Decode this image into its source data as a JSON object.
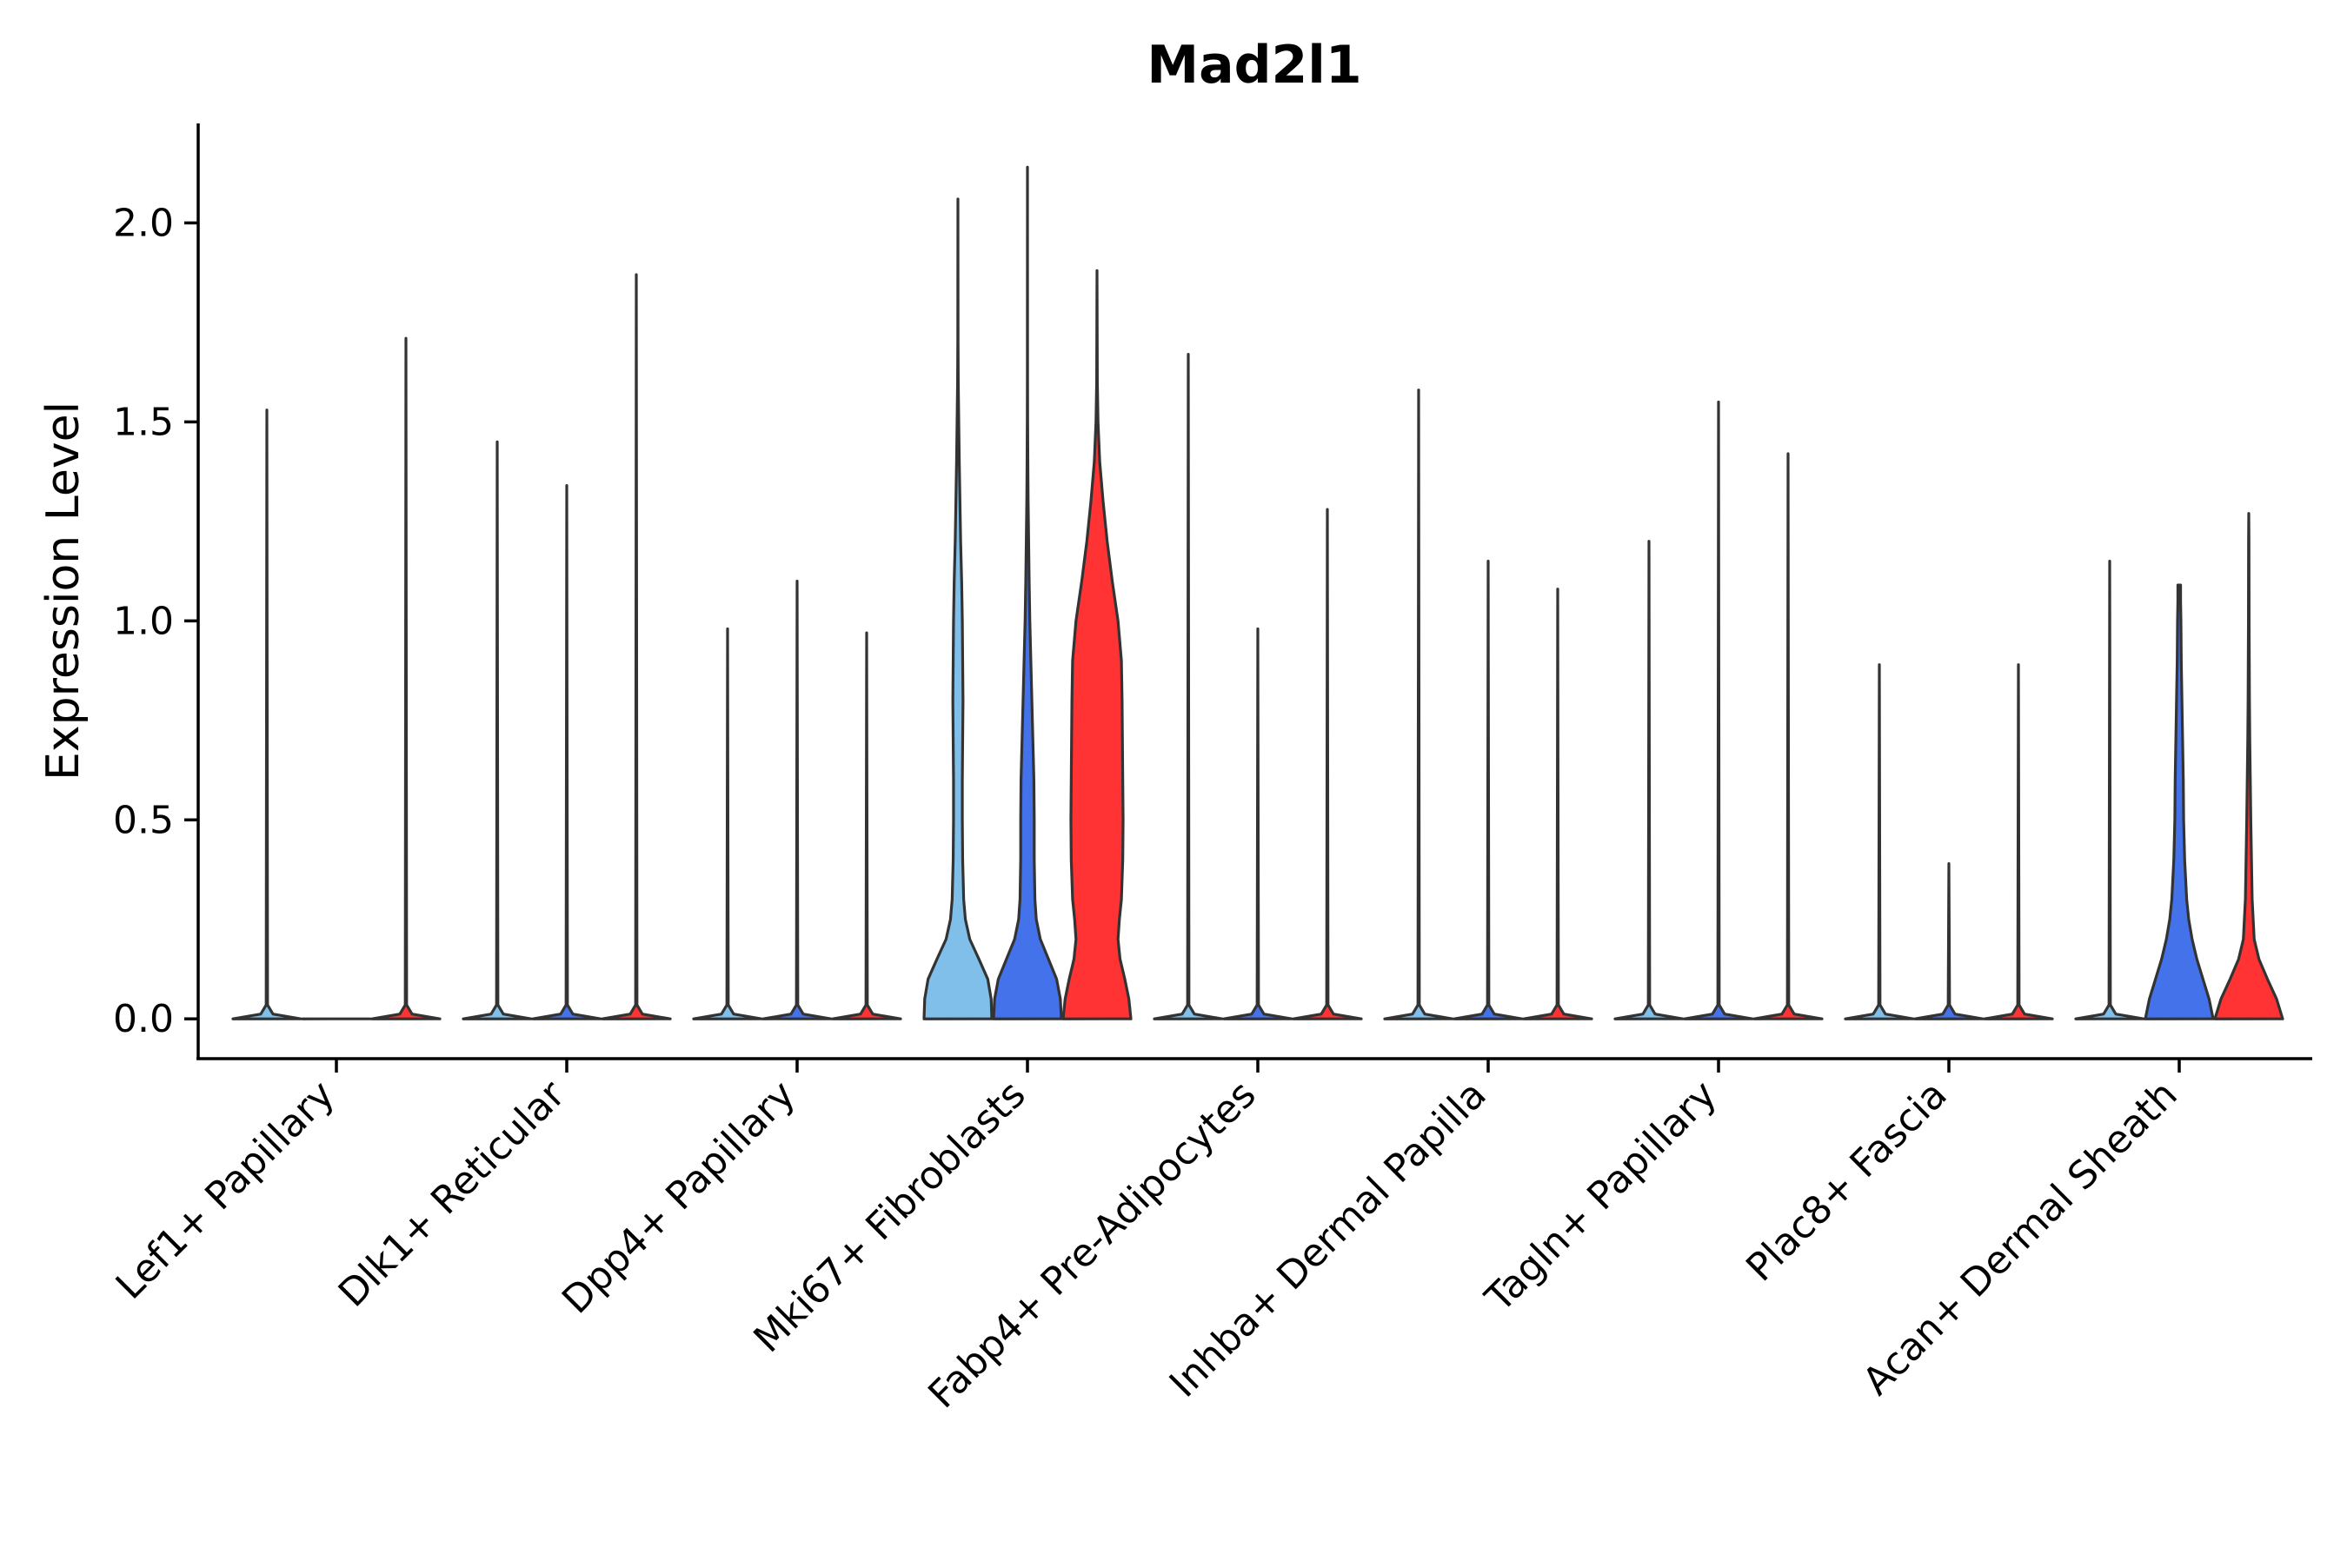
{
  "chart_data": {
    "type": "violin",
    "title": "Mad2l1",
    "xlabel": "",
    "ylabel": "Expression Level",
    "ylim": [
      -0.1,
      2.25
    ],
    "yticks": [
      "0.0",
      "0.5",
      "1.0",
      "1.5",
      "2.0"
    ],
    "legend": "none",
    "categories": [
      "Lef1+ Papillary",
      "Dlk1+ Reticular",
      "Dpp4+ Papillary",
      "Mki67+ Fibroblasts",
      "Fabp4+ Pre-Adipocytes",
      "Inhba+ Dermal Papilla",
      "Tagln+ Papillary",
      "Plac8+ Fascia",
      "Acan+ Dermal Sheath"
    ],
    "groups": [
      "group1",
      "group2",
      "group3"
    ],
    "group_colors": {
      "group1": "#7FBFEA",
      "group2": "#4472EA",
      "group3": "#FF3333"
    },
    "violins": [
      {
        "category": "Lef1+ Papillary",
        "group": "group1",
        "color": "#7FBFEA",
        "max": 1.53,
        "profile": []
      },
      {
        "category": "Lef1+ Papillary",
        "group": "group2",
        "color": "#4472EA",
        "max": 0.0,
        "profile": []
      },
      {
        "category": "Lef1+ Papillary",
        "group": "group3",
        "color": "#FF3333",
        "max": 1.71,
        "profile": []
      },
      {
        "category": "Dlk1+ Reticular",
        "group": "group1",
        "color": "#7FBFEA",
        "max": 1.45,
        "profile": []
      },
      {
        "category": "Dlk1+ Reticular",
        "group": "group2",
        "color": "#4472EA",
        "max": 1.34,
        "profile": []
      },
      {
        "category": "Dlk1+ Reticular",
        "group": "group3",
        "color": "#FF3333",
        "max": 1.87,
        "profile": []
      },
      {
        "category": "Dpp4+ Papillary",
        "group": "group1",
        "color": "#7FBFEA",
        "max": 0.98,
        "profile": []
      },
      {
        "category": "Dpp4+ Papillary",
        "group": "group2",
        "color": "#4472EA",
        "max": 1.1,
        "profile": []
      },
      {
        "category": "Dpp4+ Papillary",
        "group": "group3",
        "color": "#FF3333",
        "max": 0.97,
        "profile": []
      },
      {
        "category": "Mki67+ Fibroblasts",
        "group": "group1",
        "color": "#7FBFEA",
        "max": 2.06,
        "profile": [
          [
            0.0,
            1.0
          ],
          [
            0.05,
            0.98
          ],
          [
            0.1,
            0.88
          ],
          [
            0.15,
            0.62
          ],
          [
            0.2,
            0.35
          ],
          [
            0.25,
            0.22
          ],
          [
            0.3,
            0.17
          ],
          [
            0.4,
            0.14
          ],
          [
            0.5,
            0.13
          ],
          [
            0.6,
            0.13
          ],
          [
            0.7,
            0.14
          ],
          [
            0.8,
            0.15
          ],
          [
            0.9,
            0.14
          ],
          [
            1.0,
            0.13
          ],
          [
            1.1,
            0.11
          ],
          [
            1.2,
            0.08
          ],
          [
            1.3,
            0.06
          ],
          [
            1.4,
            0.04
          ],
          [
            1.5,
            0.025
          ],
          [
            1.6,
            0.01
          ],
          [
            1.7,
            0.004
          ],
          [
            2.06,
            0.0
          ]
        ]
      },
      {
        "category": "Mki67+ Fibroblasts",
        "group": "group2",
        "color": "#4472EA",
        "max": 2.14,
        "profile": [
          [
            0.0,
            1.0
          ],
          [
            0.05,
            0.97
          ],
          [
            0.1,
            0.86
          ],
          [
            0.15,
            0.62
          ],
          [
            0.2,
            0.38
          ],
          [
            0.25,
            0.26
          ],
          [
            0.3,
            0.22
          ],
          [
            0.4,
            0.2
          ],
          [
            0.5,
            0.2
          ],
          [
            0.6,
            0.19
          ],
          [
            0.7,
            0.16
          ],
          [
            0.8,
            0.13
          ],
          [
            0.9,
            0.1
          ],
          [
            1.0,
            0.07
          ],
          [
            1.1,
            0.05
          ],
          [
            1.2,
            0.035
          ],
          [
            1.3,
            0.02
          ],
          [
            1.4,
            0.012
          ],
          [
            1.5,
            0.006
          ],
          [
            1.6,
            0.003
          ],
          [
            2.14,
            0.0
          ]
        ]
      },
      {
        "category": "Mki67+ Fibroblasts",
        "group": "group3",
        "color": "#FF3333",
        "max": 1.88,
        "profile": [
          [
            0.0,
            1.0
          ],
          [
            0.05,
            0.94
          ],
          [
            0.1,
            0.82
          ],
          [
            0.15,
            0.68
          ],
          [
            0.2,
            0.62
          ],
          [
            0.25,
            0.66
          ],
          [
            0.3,
            0.72
          ],
          [
            0.4,
            0.76
          ],
          [
            0.5,
            0.77
          ],
          [
            0.6,
            0.76
          ],
          [
            0.7,
            0.75
          ],
          [
            0.8,
            0.74
          ],
          [
            0.9,
            0.72
          ],
          [
            1.0,
            0.62
          ],
          [
            1.1,
            0.45
          ],
          [
            1.2,
            0.3
          ],
          [
            1.3,
            0.18
          ],
          [
            1.4,
            0.08
          ],
          [
            1.5,
            0.03
          ],
          [
            1.6,
            0.01
          ],
          [
            1.88,
            0.0
          ]
        ]
      },
      {
        "category": "Fabp4+ Pre-Adipocytes",
        "group": "group1",
        "color": "#7FBFEA",
        "max": 1.67,
        "profile": []
      },
      {
        "category": "Fabp4+ Pre-Adipocytes",
        "group": "group2",
        "color": "#4472EA",
        "max": 0.98,
        "profile": []
      },
      {
        "category": "Fabp4+ Pre-Adipocytes",
        "group": "group3",
        "color": "#FF3333",
        "max": 1.28,
        "profile": []
      },
      {
        "category": "Inhba+ Dermal Papilla",
        "group": "group1",
        "color": "#7FBFEA",
        "max": 1.58,
        "profile": []
      },
      {
        "category": "Inhba+ Dermal Papilla",
        "group": "group2",
        "color": "#4472EA",
        "max": 1.15,
        "profile": []
      },
      {
        "category": "Inhba+ Dermal Papilla",
        "group": "group3",
        "color": "#FF3333",
        "max": 1.08,
        "profile": []
      },
      {
        "category": "Tagln+ Papillary",
        "group": "group1",
        "color": "#7FBFEA",
        "max": 1.2,
        "profile": []
      },
      {
        "category": "Tagln+ Papillary",
        "group": "group2",
        "color": "#4472EA",
        "max": 1.55,
        "profile": []
      },
      {
        "category": "Tagln+ Papillary",
        "group": "group3",
        "color": "#FF3333",
        "max": 1.42,
        "profile": []
      },
      {
        "category": "Plac8+ Fascia",
        "group": "group1",
        "color": "#7FBFEA",
        "max": 0.89,
        "profile": []
      },
      {
        "category": "Plac8+ Fascia",
        "group": "group2",
        "color": "#4472EA",
        "max": 0.39,
        "profile": []
      },
      {
        "category": "Plac8+ Fascia",
        "group": "group3",
        "color": "#FF3333",
        "max": 0.89,
        "profile": []
      },
      {
        "category": "Acan+ Dermal Sheath",
        "group": "group1",
        "color": "#7FBFEA",
        "max": 1.15,
        "profile": []
      },
      {
        "category": "Acan+ Dermal Sheath",
        "group": "group2",
        "color": "#4472EA",
        "max": 1.09,
        "profile": [
          [
            0.0,
            1.0
          ],
          [
            0.05,
            0.88
          ],
          [
            0.1,
            0.7
          ],
          [
            0.15,
            0.52
          ],
          [
            0.2,
            0.38
          ],
          [
            0.25,
            0.28
          ],
          [
            0.3,
            0.22
          ],
          [
            0.4,
            0.16
          ],
          [
            0.5,
            0.13
          ],
          [
            0.6,
            0.12
          ],
          [
            0.7,
            0.1
          ],
          [
            0.8,
            0.08
          ],
          [
            0.9,
            0.06
          ],
          [
            1.0,
            0.05
          ],
          [
            1.05,
            0.04
          ],
          [
            1.09,
            0.04
          ]
        ]
      },
      {
        "category": "Acan+ Dermal Sheath",
        "group": "group3",
        "color": "#FF3333",
        "max": 1.27,
        "profile": [
          [
            0.0,
            1.0
          ],
          [
            0.05,
            0.82
          ],
          [
            0.1,
            0.55
          ],
          [
            0.15,
            0.3
          ],
          [
            0.2,
            0.16
          ],
          [
            0.3,
            0.1
          ],
          [
            0.4,
            0.08
          ],
          [
            0.5,
            0.06
          ],
          [
            0.6,
            0.045
          ],
          [
            0.7,
            0.03
          ],
          [
            0.8,
            0.02
          ],
          [
            0.9,
            0.015
          ],
          [
            1.0,
            0.01
          ],
          [
            1.1,
            0.008
          ],
          [
            1.2,
            0.006
          ],
          [
            1.27,
            0.0
          ]
        ]
      }
    ]
  }
}
